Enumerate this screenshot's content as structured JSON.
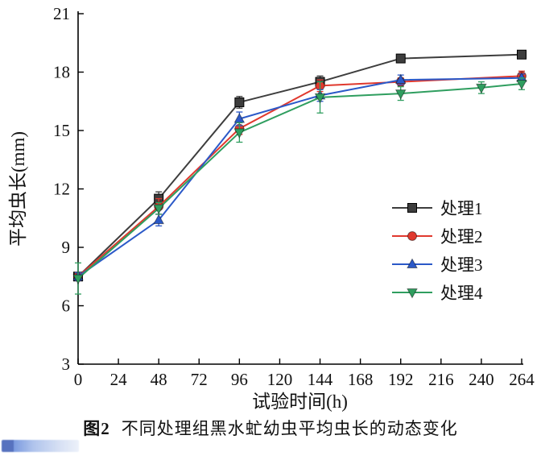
{
  "figure": {
    "caption_label": "图2",
    "caption_text": "不同处理组黑水虻幼虫平均虫长的动态变化"
  },
  "chart_data": {
    "type": "line",
    "title": "",
    "xlabel": "试验时间(h)",
    "ylabel": "平均虫长(mm)",
    "xlim": [
      0,
      264
    ],
    "ylim": [
      3,
      21
    ],
    "xticks": [
      0,
      24,
      48,
      72,
      96,
      120,
      144,
      168,
      192,
      216,
      240,
      264
    ],
    "yticks": [
      3,
      6,
      9,
      12,
      15,
      18,
      21
    ],
    "grid": false,
    "legend_position": "inside-right-center",
    "series": [
      {
        "name": "处理1",
        "color": "#3d3d3d",
        "marker": "square",
        "x": [
          0,
          48,
          96,
          144,
          192,
          264
        ],
        "y": [
          7.5,
          11.5,
          16.45,
          17.5,
          18.7,
          18.9
        ],
        "err": [
          0.2,
          0.35,
          0.3,
          0.3,
          0.15,
          0.15
        ]
      },
      {
        "name": "处理2",
        "color": "#e0392e",
        "marker": "circle",
        "x": [
          0,
          48,
          96,
          144,
          192,
          264
        ],
        "y": [
          7.5,
          11.1,
          15.1,
          17.3,
          17.5,
          17.8
        ],
        "err": [
          0.2,
          0.4,
          0.3,
          0.3,
          0.2,
          0.25
        ]
      },
      {
        "name": "处理3",
        "color": "#2b59c8",
        "marker": "triangle-up",
        "x": [
          0,
          48,
          96,
          144,
          192,
          264
        ],
        "y": [
          7.5,
          10.4,
          15.6,
          16.8,
          17.6,
          17.7
        ],
        "err": [
          0.2,
          0.3,
          0.35,
          0.3,
          0.25,
          0.2
        ]
      },
      {
        "name": "处理4",
        "color": "#2f9e5f",
        "marker": "triangle-down",
        "x": [
          0,
          48,
          96,
          144,
          192,
          240,
          264
        ],
        "y": [
          7.4,
          11.0,
          14.9,
          16.7,
          16.9,
          17.2,
          17.4
        ],
        "err": [
          0.8,
          0.3,
          0.5,
          0.8,
          0.35,
          0.3,
          0.3
        ]
      }
    ]
  }
}
